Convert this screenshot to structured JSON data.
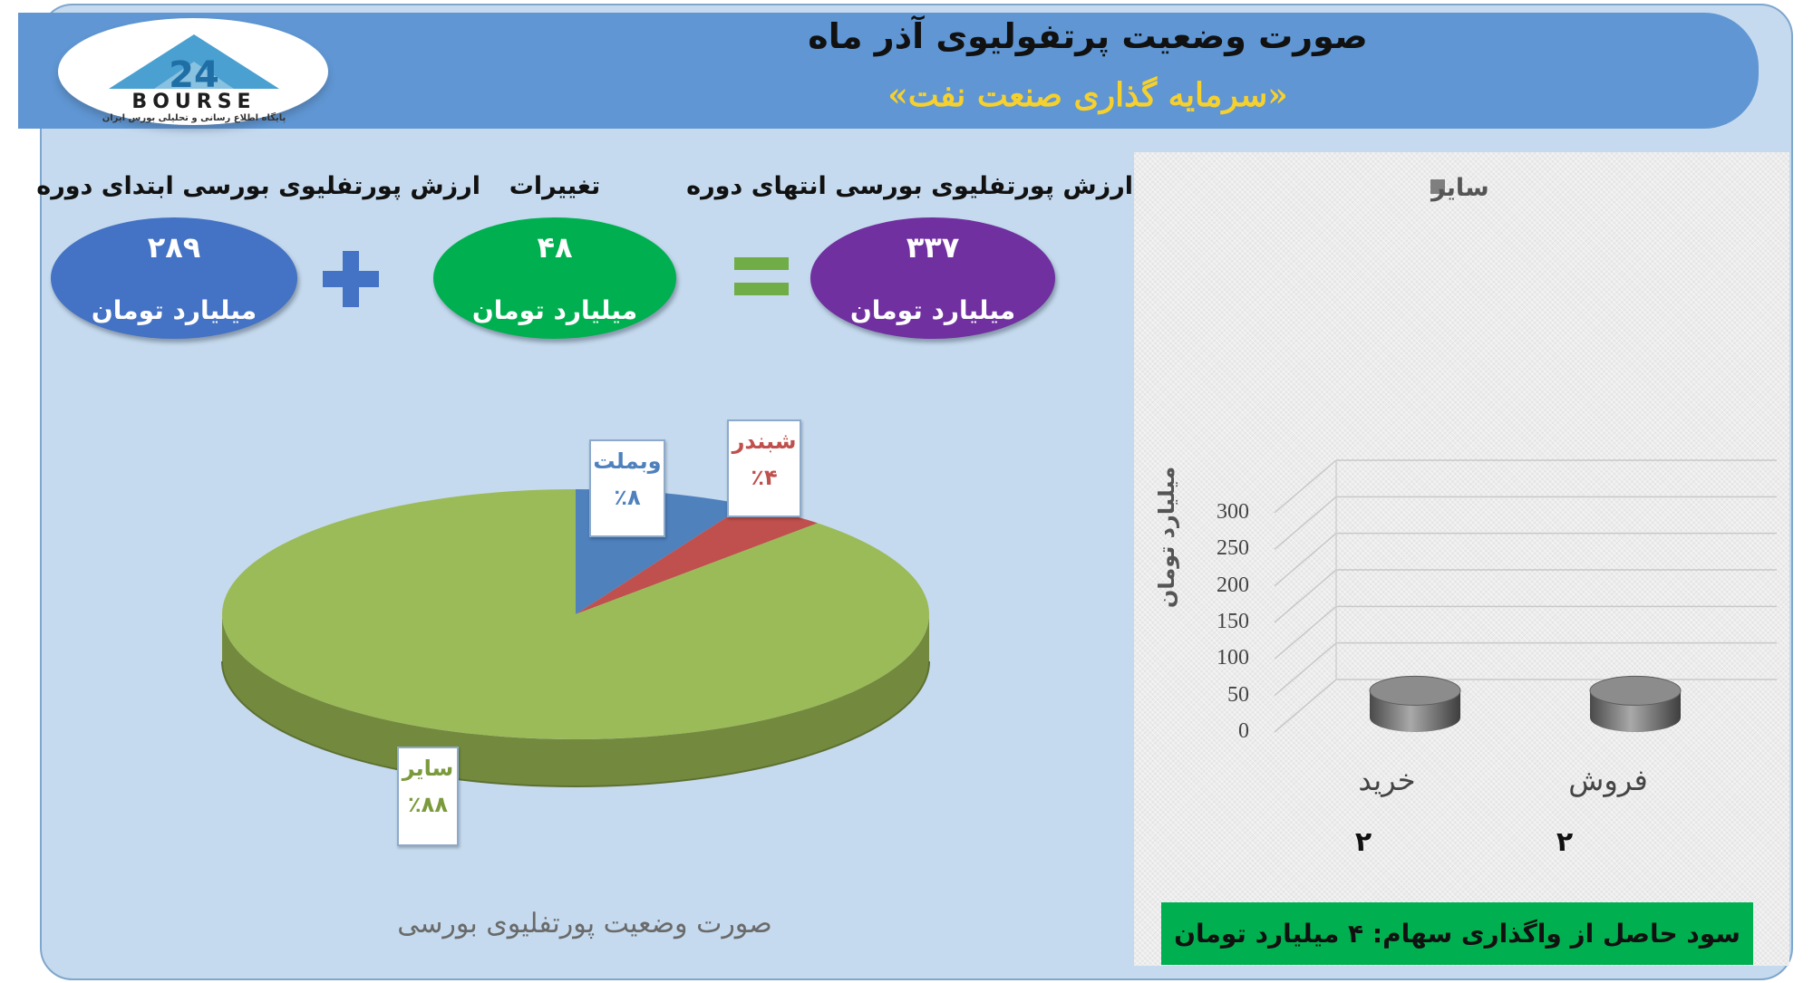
{
  "header": {
    "title": "صورت وضعیت پرتفولیوی آذر ماه",
    "subtitle": "«سرمایه گذاری صنعت نفت»",
    "logo_text": "BOURSE",
    "logo_number": "24",
    "logo_tagline": "پایگاه اطلاع رسانی و تحلیلی بورس ایران"
  },
  "kpis": {
    "start": {
      "label": "ارزش پورتفلیوی بورسی ابتدای دوره",
      "value": "۲۸۹",
      "unit": "میلیارد تومان",
      "color": "#4472c4"
    },
    "change": {
      "label": "تغییرات",
      "value": "۴۸",
      "unit": "میلیارد تومان",
      "color": "#00b050"
    },
    "end": {
      "label": "ارزش پورتفلیوی بورسی انتهای دوره",
      "value": "۳۳۷",
      "unit": "میلیارد تومان",
      "color": "#7030a0"
    },
    "plus_color": "#4472c4",
    "equals_color": "#70ad47"
  },
  "chart_data": [
    {
      "type": "pie",
      "title": "صورت وضعیت پورتفلیوی بورسی",
      "slices": [
        {
          "name": "سایر",
          "value": 88,
          "label": "٪۸۸",
          "color": "#9bbb59"
        },
        {
          "name": "وبملت",
          "value": 8,
          "label": "٪۸",
          "color": "#4f81bd"
        },
        {
          "name": "شبندر",
          "value": 4,
          "label": "٪۴",
          "color": "#c0504d"
        }
      ]
    },
    {
      "type": "bar",
      "categories": [
        "خرید",
        "فروش"
      ],
      "category_values": [
        "۲",
        "۲"
      ],
      "series": [
        {
          "name": "سایر",
          "values": [
            2,
            2
          ],
          "color": "#7f7f7f"
        }
      ],
      "ylabel": "میلیارد تومان",
      "ylim": [
        0,
        300
      ],
      "yticks": [
        "0",
        "50",
        "100",
        "150",
        "200",
        "250",
        "300"
      ],
      "grid": true,
      "legend": "top"
    }
  ],
  "footer": {
    "profit": "سود حاصل از واگذاری سهام: ۴ میلیارد تومان"
  }
}
